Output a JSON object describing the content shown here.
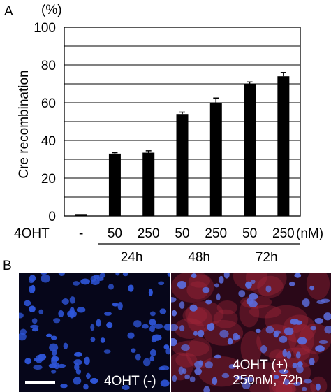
{
  "panel_a_label": "A",
  "panel_b_label": "B",
  "chart_data": {
    "type": "bar",
    "ylabel": "Cre recombination",
    "yunit": "(%)",
    "ylim": [
      0,
      100
    ],
    "yticks": [
      0,
      20,
      40,
      60,
      80,
      100
    ],
    "grid": true,
    "row_label": "4OHT",
    "unit_label": "(nM)",
    "categories": [
      "-",
      "50",
      "250",
      "50",
      "250",
      "50",
      "250"
    ],
    "values": [
      1,
      33,
      33.5,
      54,
      60,
      70,
      74
    ],
    "errors": [
      0,
      0.5,
      1,
      1,
      2.5,
      1,
      2
    ],
    "groups": [
      {
        "label": "24h",
        "from": 1,
        "to": 2
      },
      {
        "label": "48h",
        "from": 3,
        "to": 4
      },
      {
        "label": "72h",
        "from": 5,
        "to": 6
      }
    ]
  },
  "micrographs": {
    "left_caption": "4OHT (-)",
    "right_caption_line1": "4OHT (+)",
    "right_caption_line2": "250nM, 72h"
  }
}
